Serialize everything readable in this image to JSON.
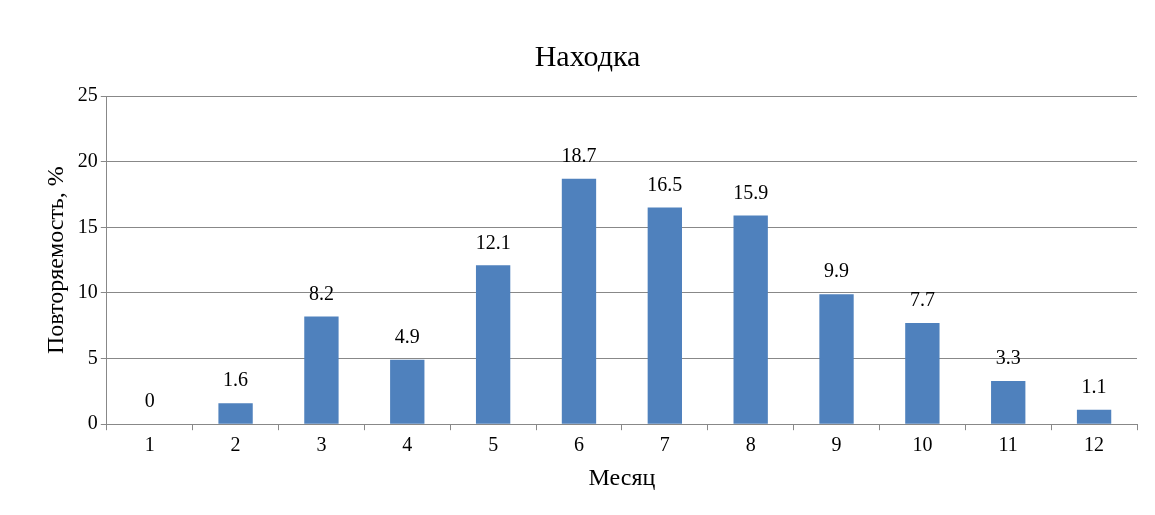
{
  "chart_data": {
    "type": "bar",
    "title": "Находка",
    "xlabel": "Месяц",
    "ylabel": "Повторяемость, %",
    "categories": [
      "1",
      "2",
      "3",
      "4",
      "5",
      "6",
      "7",
      "8",
      "9",
      "10",
      "11",
      "12"
    ],
    "values": [
      0,
      1.6,
      8.2,
      4.9,
      12.1,
      18.7,
      16.5,
      15.9,
      9.9,
      7.7,
      3.3,
      1.1
    ],
    "color": "#4f81bd",
    "ylim": [
      0,
      25
    ],
    "yticks": [
      0,
      5,
      10,
      15,
      20,
      25
    ],
    "grid": "y",
    "legend": false,
    "data_labels": true
  }
}
